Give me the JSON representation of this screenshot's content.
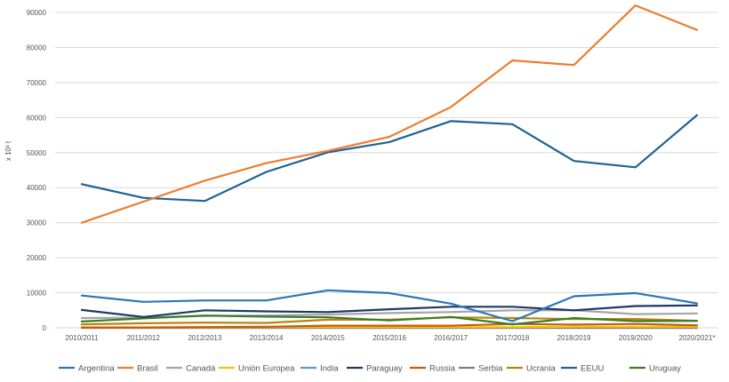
{
  "chart_data": {
    "type": "line",
    "ylabel": "x 10³ t",
    "ylim": [
      0,
      90000
    ],
    "yticks": [
      "0",
      "10000",
      "20000",
      "30000",
      "40000",
      "50000",
      "60000",
      "70000",
      "80000",
      "90000"
    ],
    "grid": true,
    "legend_position": "bottom",
    "categories": [
      "2010/2011",
      "2011/2012",
      "2012/2013",
      "2013/2014",
      "2014/2015",
      "2015/2016",
      "2016/2017",
      "2017/2018",
      "2018/2019",
      "2019/2020",
      "2020/2021*"
    ],
    "series": [
      {
        "name": "Argentina",
        "color": "#2e75b6",
        "values": [
          9200,
          7400,
          7800,
          7800,
          10700,
          9900,
          6900,
          1900,
          9000,
          9900,
          7000
        ]
      },
      {
        "name": "Brasil",
        "color": "#ed7d31",
        "values": [
          30000,
          36000,
          42000,
          47000,
          50500,
          54500,
          63000,
          76300,
          75000,
          92000,
          85000
        ]
      },
      {
        "name": "Canadá",
        "color": "#a5a5a5",
        "values": [
          2800,
          2900,
          3400,
          3500,
          3800,
          4200,
          4500,
          5000,
          5000,
          3900,
          4100
        ]
      },
      {
        "name": "Unión Europea",
        "color": "#ffc000",
        "values": [
          100,
          100,
          150,
          200,
          200,
          200,
          200,
          200,
          300,
          300,
          300
        ]
      },
      {
        "name": "India",
        "color": "#5b9bd5",
        "values": [
          0,
          0,
          0,
          0,
          0,
          0,
          0,
          0,
          0,
          0,
          0
        ]
      },
      {
        "name": "Paraguay",
        "color": "#1f3864",
        "values": [
          5100,
          3100,
          5000,
          4700,
          4500,
          5300,
          6000,
          6000,
          5000,
          6200,
          6400
        ]
      },
      {
        "name": "Russia",
        "color": "#c55a11",
        "values": [
          100,
          100,
          200,
          300,
          600,
          600,
          600,
          1100,
          900,
          1100,
          700
        ]
      },
      {
        "name": "Serbia",
        "color": "#7f7f7f",
        "values": [
          0,
          0,
          0,
          0,
          0,
          0,
          0,
          0,
          0,
          0,
          0
        ]
      },
      {
        "name": "Ucrania",
        "color": "#b8860b",
        "values": [
          1000,
          1300,
          1500,
          1400,
          2300,
          2300,
          3000,
          2800,
          2500,
          2500,
          2000
        ]
      },
      {
        "name": "EEUU",
        "color": "#1f6391",
        "values": [
          41000,
          37100,
          36200,
          44500,
          50100,
          53000,
          59000,
          58100,
          47600,
          45800,
          60700
        ]
      },
      {
        "name": "Uruguay",
        "color": "#3a7d22",
        "values": [
          1800,
          2700,
          3500,
          3200,
          3000,
          2100,
          3100,
          1000,
          2800,
          1900,
          2000
        ]
      }
    ]
  }
}
